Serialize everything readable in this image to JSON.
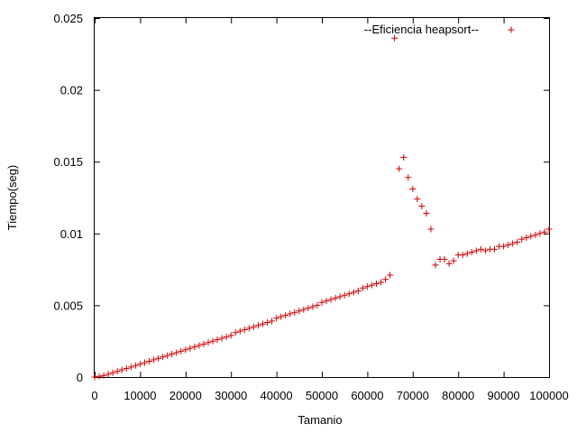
{
  "chart_data": {
    "type": "scatter",
    "xlabel": "Tamanio",
    "ylabel": "Tiempo(seg)",
    "xlim": [
      0,
      100000
    ],
    "ylim": [
      0,
      0.025
    ],
    "x_ticks": [
      0,
      10000,
      20000,
      30000,
      40000,
      50000,
      60000,
      70000,
      80000,
      90000,
      100000
    ],
    "x_tick_labels": [
      "0",
      "10000",
      "20000",
      "30000",
      "40000",
      "50000",
      "60000",
      "70000",
      "80000",
      "90000",
      "100000"
    ],
    "y_ticks": [
      0,
      0.005,
      0.01,
      0.015,
      0.02,
      0.025
    ],
    "y_tick_labels": [
      "0",
      "0.005",
      "0.01",
      "0.015",
      "0.02",
      "0.025"
    ],
    "grid": false,
    "legend_position": "top-right",
    "series": [
      {
        "name": "--Eficiencia heapsort--",
        "color": "#cc0000",
        "marker": "plus",
        "x": [
          0,
          1000,
          2000,
          3000,
          4000,
          5000,
          6000,
          7000,
          8000,
          9000,
          10000,
          11000,
          12000,
          13000,
          14000,
          15000,
          16000,
          17000,
          18000,
          19000,
          20000,
          21000,
          22000,
          23000,
          24000,
          25000,
          26000,
          27000,
          28000,
          29000,
          30000,
          31000,
          32000,
          33000,
          34000,
          35000,
          36000,
          37000,
          38000,
          39000,
          40000,
          41000,
          42000,
          43000,
          44000,
          45000,
          46000,
          47000,
          48000,
          49000,
          50000,
          51000,
          52000,
          53000,
          54000,
          55000,
          56000,
          57000,
          58000,
          59000,
          60000,
          61000,
          62000,
          63000,
          64000,
          65000,
          66000,
          67000,
          68000,
          69000,
          70000,
          71000,
          72000,
          73000,
          74000,
          75000,
          76000,
          77000,
          78000,
          79000,
          80000,
          81000,
          82000,
          83000,
          84000,
          85000,
          86000,
          87000,
          88000,
          89000,
          90000,
          91000,
          92000,
          93000,
          94000,
          95000,
          96000,
          97000,
          98000,
          99000,
          100000
        ],
        "y": [
          0,
          5e-05,
          0.0001,
          0.0002,
          0.0003,
          0.0004,
          0.0005,
          0.0006,
          0.0007,
          0.0008,
          0.0009,
          0.001,
          0.0011,
          0.0012,
          0.0013,
          0.0014,
          0.0015,
          0.0016,
          0.0017,
          0.0018,
          0.0019,
          0.002,
          0.0021,
          0.0022,
          0.0023,
          0.0024,
          0.0025,
          0.0026,
          0.0027,
          0.0028,
          0.0029,
          0.0031,
          0.0032,
          0.0033,
          0.0034,
          0.0035,
          0.0036,
          0.0037,
          0.0038,
          0.0039,
          0.0041,
          0.0042,
          0.0043,
          0.0044,
          0.0045,
          0.0046,
          0.0047,
          0.0048,
          0.0049,
          0.005,
          0.0052,
          0.0053,
          0.0054,
          0.0055,
          0.0056,
          0.0057,
          0.0058,
          0.0059,
          0.006,
          0.0062,
          0.0063,
          0.0064,
          0.0065,
          0.0066,
          0.0068,
          0.0071,
          0.0236,
          0.0145,
          0.0153,
          0.0139,
          0.0131,
          0.0124,
          0.0119,
          0.0114,
          0.0103,
          0.0078,
          0.0082,
          0.0082,
          0.0079,
          0.0081,
          0.0085,
          0.0085,
          0.0086,
          0.0087,
          0.0088,
          0.0089,
          0.0088,
          0.0089,
          0.0089,
          0.0091,
          0.0091,
          0.0092,
          0.0093,
          0.0094,
          0.0096,
          0.0097,
          0.0098,
          0.0099,
          0.01,
          0.0101,
          0.0103
        ]
      }
    ]
  }
}
